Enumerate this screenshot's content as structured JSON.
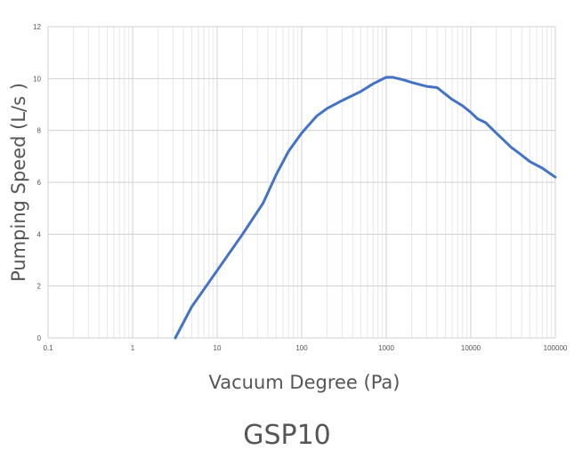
{
  "footer": {
    "title": "GSP10"
  },
  "chart_data": {
    "type": "line",
    "xlabel": "Vacuum Degree (Pa)",
    "ylabel": "Pumping Speed (L/s )",
    "xscale": "log",
    "xlim": [
      0.1,
      100000
    ],
    "ylim": [
      0,
      12
    ],
    "xticks": [
      "0.1",
      "1",
      "10",
      "100",
      "1000",
      "10000",
      "100000"
    ],
    "yticks": [
      "0",
      "2",
      "4",
      "6",
      "8",
      "10",
      "12"
    ],
    "grid": true,
    "legend": "none",
    "line_color": "#4472C4",
    "series": [
      {
        "x": [
          3.2,
          5,
          10,
          20,
          35,
          50,
          70,
          100,
          150,
          200,
          300,
          500,
          700,
          1000,
          1200,
          1600,
          2000,
          3000,
          4000,
          5000,
          6000,
          8000,
          10000,
          12000,
          15000,
          20000,
          25000,
          30000,
          40000,
          50000,
          70000,
          100000
        ],
        "values": [
          0.0,
          1.2,
          2.6,
          4.0,
          5.2,
          6.3,
          7.2,
          7.9,
          8.55,
          8.85,
          9.15,
          9.5,
          9.8,
          10.05,
          10.05,
          9.95,
          9.85,
          9.7,
          9.65,
          9.4,
          9.2,
          8.95,
          8.7,
          8.45,
          8.3,
          7.9,
          7.6,
          7.35,
          7.05,
          6.8,
          6.55,
          6.2
        ]
      }
    ]
  }
}
